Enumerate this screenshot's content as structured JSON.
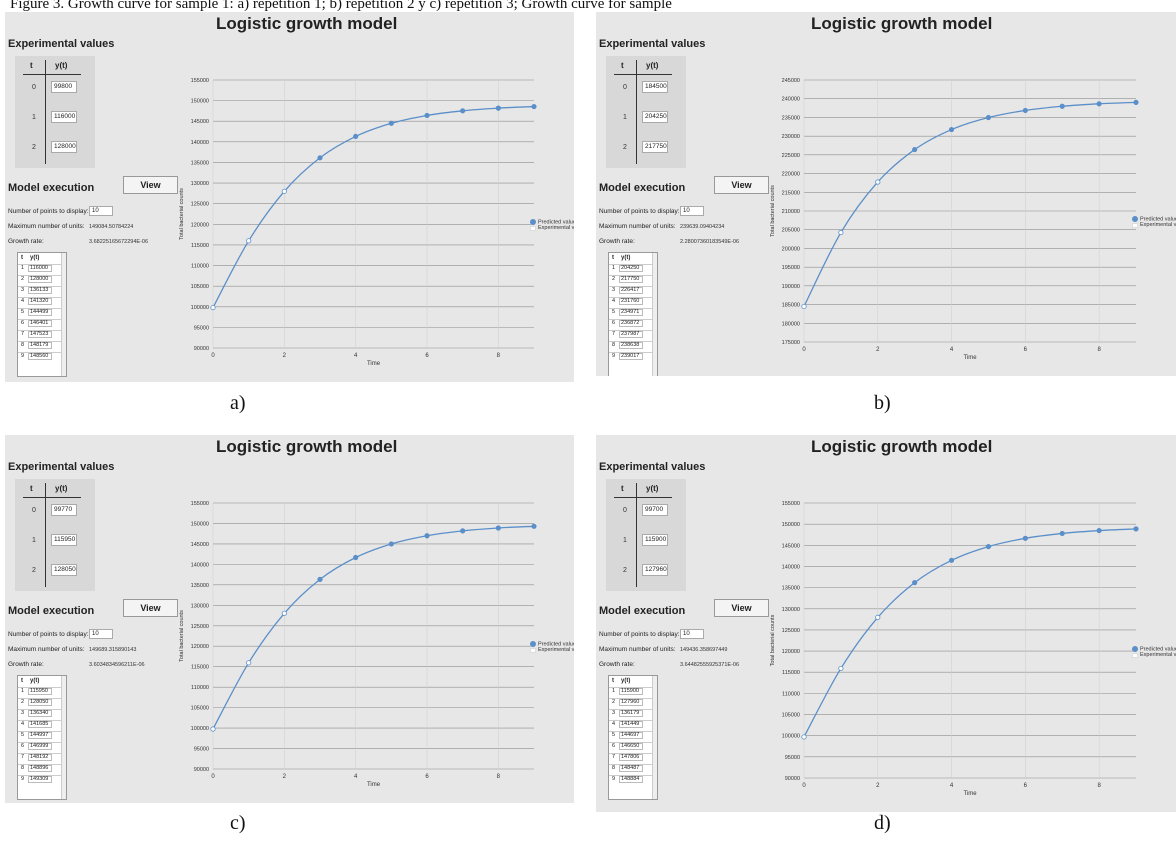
{
  "figure": {
    "caption_top": "Figure 3. Growth curve for sample 1: a) repetition 1; b) repetition 2 y c) repetition 3; Growth curve for sample"
  },
  "colors": {
    "line": "#5b8fc9",
    "panel_bg": "#e7e7e7",
    "grid": "#8e8e8e"
  },
  "panels": [
    {
      "sublabel": "a)",
      "title": "Logistic growth model",
      "exp_label": "Experimental values",
      "exp_header_t": "t",
      "exp_header_y": "y(t)",
      "exp_t": [
        "0",
        "1",
        "2"
      ],
      "exp_y": [
        "99800",
        "116000",
        "128000"
      ],
      "model_label": "Model execution",
      "view_button": "View",
      "points_label": "Number of points to display:",
      "points_value": "10",
      "max_units_label": "Maximum number of units:",
      "max_units_value": "149084.50784224",
      "growth_label": "Growth rate:",
      "growth_value": "3.68225165672294E-06",
      "table_header_t": "t",
      "table_header_y": "y(t)",
      "table_rows": [
        {
          "t": "1",
          "y": "116000"
        },
        {
          "t": "2",
          "y": "128000"
        },
        {
          "t": "3",
          "y": "136133"
        },
        {
          "t": "4",
          "y": "141320"
        },
        {
          "t": "5",
          "y": "144499"
        },
        {
          "t": "6",
          "y": "146401"
        },
        {
          "t": "7",
          "y": "147523"
        },
        {
          "t": "8",
          "y": "148179"
        },
        {
          "t": "9",
          "y": "148560"
        }
      ],
      "legend": [
        "Predicted values",
        "Experimental values"
      ],
      "chart_data": {
        "type": "line",
        "x": [
          0,
          1,
          2,
          3,
          4,
          5,
          6,
          7,
          8,
          9
        ],
        "series": [
          {
            "name": "Predicted values",
            "values": [
              99800,
              116000,
              128000,
              136133,
              141320,
              144499,
              146401,
              147523,
              148179,
              148560
            ]
          }
        ],
        "xlabel": "Time",
        "ylabel": "Total bacterial counts",
        "ylim": [
          90000,
          155000
        ],
        "yticks": [
          90000,
          95000,
          100000,
          105000,
          110000,
          115000,
          120000,
          125000,
          130000,
          135000,
          140000,
          145000,
          150000,
          155000
        ],
        "xticks": [
          0,
          2,
          4,
          6,
          8
        ],
        "grid": true,
        "legend_position": "right"
      }
    },
    {
      "sublabel": "b)",
      "title": "Logistic growth model",
      "exp_label": "Experimental values",
      "exp_header_t": "t",
      "exp_header_y": "y(t)",
      "exp_t": [
        "0",
        "1",
        "2"
      ],
      "exp_y": [
        "184500",
        "204250",
        "217750"
      ],
      "model_label": "Model execution",
      "view_button": "View",
      "points_label": "Number of points to display:",
      "points_value": "10",
      "max_units_label": "Maximum number of units:",
      "max_units_value": "239639.09404234",
      "growth_label": "Growth rate:",
      "growth_value": "2.28007360183549E-06",
      "table_header_t": "t",
      "table_header_y": "y(t)",
      "table_rows": [
        {
          "t": "1",
          "y": "204250"
        },
        {
          "t": "2",
          "y": "217750"
        },
        {
          "t": "3",
          "y": "226417"
        },
        {
          "t": "4",
          "y": "231760"
        },
        {
          "t": "5",
          "y": "234971"
        },
        {
          "t": "6",
          "y": "236872"
        },
        {
          "t": "7",
          "y": "237987"
        },
        {
          "t": "8",
          "y": "238638"
        },
        {
          "t": "9",
          "y": "239017"
        }
      ],
      "legend": [
        "Predicted values",
        "Experimental values"
      ],
      "chart_data": {
        "type": "line",
        "x": [
          0,
          1,
          2,
          3,
          4,
          5,
          6,
          7,
          8,
          9
        ],
        "series": [
          {
            "name": "Predicted values",
            "values": [
              184500,
              204250,
              217750,
              226417,
              231760,
              234971,
              236872,
              237987,
              238638,
              239017
            ]
          }
        ],
        "xlabel": "Time",
        "ylabel": "Total bacterial counts",
        "ylim": [
          175000,
          245000
        ],
        "yticks": [
          175000,
          180000,
          185000,
          190000,
          195000,
          200000,
          205000,
          210000,
          215000,
          220000,
          225000,
          230000,
          235000,
          240000,
          245000
        ],
        "xticks": [
          0,
          2,
          4,
          6,
          8
        ],
        "grid": true,
        "legend_position": "right"
      }
    },
    {
      "sublabel": "c)",
      "title": "Logistic growth model",
      "exp_label": "Experimental values",
      "exp_header_t": "t",
      "exp_header_y": "y(t)",
      "exp_t": [
        "0",
        "1",
        "2"
      ],
      "exp_y": [
        "99770",
        "115950",
        "128050"
      ],
      "model_label": "Model execution",
      "view_button": "View",
      "points_label": "Number of points to display:",
      "points_value": "10",
      "max_units_label": "Maximum number of units:",
      "max_units_value": "149689.315890143",
      "growth_label": "Growth rate:",
      "growth_value": "3.6034834596211E-06",
      "table_header_t": "t",
      "table_header_y": "y(t)",
      "table_rows": [
        {
          "t": "1",
          "y": "115950"
        },
        {
          "t": "2",
          "y": "128050"
        },
        {
          "t": "3",
          "y": "136340"
        },
        {
          "t": "4",
          "y": "141685"
        },
        {
          "t": "5",
          "y": "144997"
        },
        {
          "t": "6",
          "y": "146999"
        },
        {
          "t": "7",
          "y": "148192"
        },
        {
          "t": "8",
          "y": "148896"
        },
        {
          "t": "9",
          "y": "149309"
        }
      ],
      "legend": [
        "Predicted values",
        "Experimental values"
      ],
      "chart_data": {
        "type": "line",
        "x": [
          0,
          1,
          2,
          3,
          4,
          5,
          6,
          7,
          8,
          9
        ],
        "series": [
          {
            "name": "Predicted values",
            "values": [
              99770,
              115950,
              128050,
              136340,
              141685,
              144997,
              146999,
              148192,
              148896,
              149309
            ]
          }
        ],
        "xlabel": "Time",
        "ylabel": "Total bacterial counts",
        "ylim": [
          90000,
          155000
        ],
        "yticks": [
          90000,
          95000,
          100000,
          105000,
          110000,
          115000,
          120000,
          125000,
          130000,
          135000,
          140000,
          145000,
          150000,
          155000
        ],
        "xticks": [
          0,
          2,
          4,
          6,
          8
        ],
        "grid": true,
        "legend_position": "right"
      }
    },
    {
      "sublabel": "d)",
      "title": "Logistic growth model",
      "exp_label": "Experimental values",
      "exp_header_t": "t",
      "exp_header_y": "y(t)",
      "exp_t": [
        "0",
        "1",
        "2"
      ],
      "exp_y": [
        "99700",
        "115900",
        "127960"
      ],
      "model_label": "Model execution",
      "view_button": "View",
      "points_label": "Number of points to display:",
      "points_value": "10",
      "max_units_label": "Maximum number of units:",
      "max_units_value": "149436.358697449",
      "growth_label": "Growth rate:",
      "growth_value": "3.64482555925371E-06",
      "table_header_t": "t",
      "table_header_y": "y(t)",
      "table_rows": [
        {
          "t": "1",
          "y": "115900"
        },
        {
          "t": "2",
          "y": "127960"
        },
        {
          "t": "3",
          "y": "136179"
        },
        {
          "t": "4",
          "y": "141449"
        },
        {
          "t": "5",
          "y": "144697"
        },
        {
          "t": "6",
          "y": "146650"
        },
        {
          "t": "7",
          "y": "147806"
        },
        {
          "t": "8",
          "y": "148487"
        },
        {
          "t": "9",
          "y": "148884"
        }
      ],
      "legend": [
        "Predicted values",
        "Experimental values"
      ],
      "chart_data": {
        "type": "line",
        "x": [
          0,
          1,
          2,
          3,
          4,
          5,
          6,
          7,
          8,
          9
        ],
        "series": [
          {
            "name": "Predicted values",
            "values": [
              99700,
              115900,
              127960,
              136179,
              141449,
              144697,
              146650,
              147806,
              148487,
              148884
            ]
          }
        ],
        "xlabel": "Time",
        "ylabel": "Total bacterial counts",
        "ylim": [
          90000,
          155000
        ],
        "yticks": [
          90000,
          95000,
          100000,
          105000,
          110000,
          115000,
          120000,
          125000,
          130000,
          135000,
          140000,
          145000,
          150000,
          155000
        ],
        "xticks": [
          0,
          2,
          4,
          6,
          8
        ],
        "grid": true,
        "legend_position": "right"
      }
    }
  ]
}
